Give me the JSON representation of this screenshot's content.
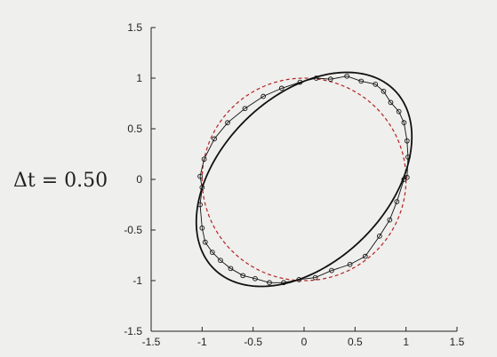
{
  "chart_data": {
    "type": "scatter",
    "annotation": "Δt = 0.50",
    "xlim": [
      -1.5,
      1.5
    ],
    "ylim": [
      -1.5,
      1.5
    ],
    "xticks": [
      -1.5,
      -1,
      -0.5,
      0,
      0.5,
      1,
      1.5
    ],
    "yticks": [
      -1.5,
      -1,
      -0.5,
      0,
      0.5,
      1,
      1.5
    ],
    "xtick_labels": [
      "-1.5",
      "-1",
      "-0.5",
      "0",
      "0.5",
      "1",
      "1.5"
    ],
    "ytick_labels": [
      "-1.5",
      "-1",
      "-0.5",
      "0",
      "0.5",
      "1",
      "1.5"
    ],
    "grid": false,
    "series": [
      {
        "style": "dashed-circle",
        "color": "#b22222",
        "center": [
          0,
          0
        ],
        "radius": 1
      },
      {
        "style": "solid-ellipse",
        "color": "#111111",
        "center": [
          0,
          0
        ],
        "semi_axes": [
          1.25,
          0.82
        ],
        "tilt_deg": 45
      },
      {
        "style": "markers-with-connecting-line",
        "color": "#111111",
        "x": [
          1.02,
          1.01,
          0.98,
          0.93,
          0.85,
          0.78,
          0.7,
          0.56,
          0.42,
          0.26,
          0.12,
          -0.04,
          -0.22,
          -0.4,
          -0.58,
          -0.75,
          -0.88,
          -0.98,
          -1.02,
          -1.0,
          -1.02,
          -1.0,
          -0.97,
          -0.9,
          -0.82,
          -0.72,
          -0.6,
          -0.48,
          -0.34,
          -0.2,
          -0.05,
          0.11,
          0.27,
          0.45,
          0.6,
          0.74,
          0.84,
          0.91,
          0.98,
          1.01
        ],
        "y": [
          0.22,
          0.38,
          0.56,
          0.67,
          0.76,
          0.87,
          0.94,
          0.97,
          1.02,
          0.99,
          1.0,
          0.96,
          0.9,
          0.82,
          0.7,
          0.56,
          0.4,
          0.2,
          0.03,
          -0.08,
          -0.25,
          -0.48,
          -0.62,
          -0.72,
          -0.8,
          -0.88,
          -0.95,
          -0.98,
          -1.02,
          -1.02,
          -0.99,
          -0.97,
          -0.9,
          -0.84,
          -0.76,
          -0.56,
          -0.4,
          -0.22,
          0.0,
          0.02
        ]
      }
    ]
  }
}
